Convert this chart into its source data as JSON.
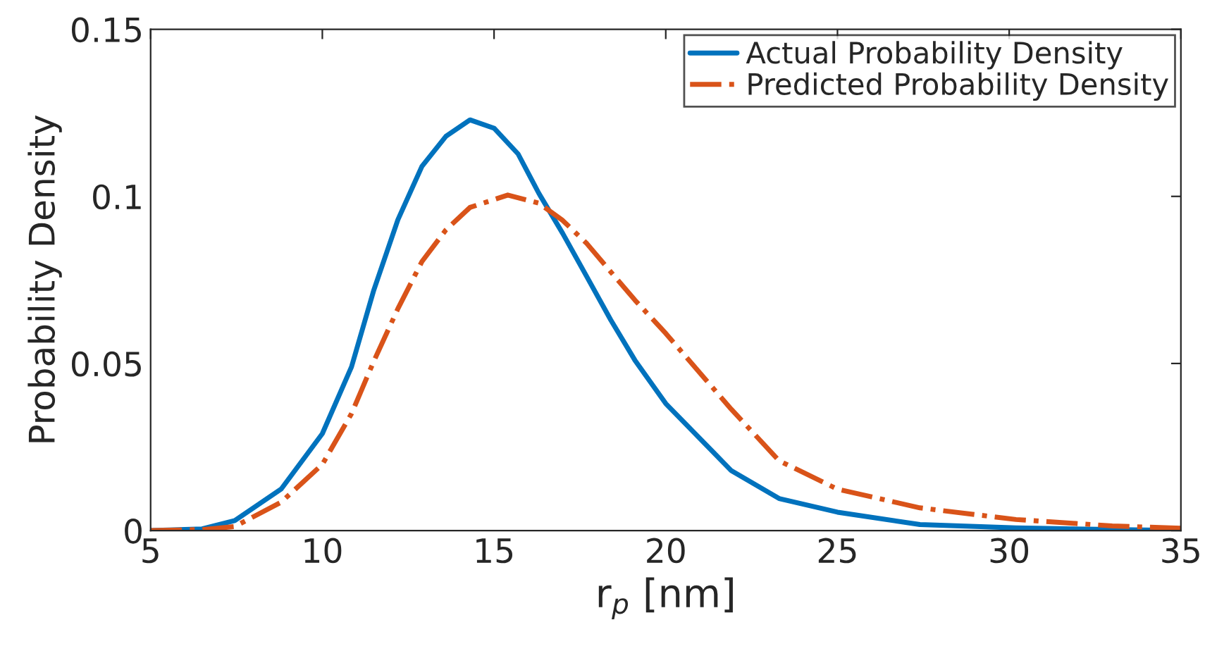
{
  "chart_data": {
    "type": "line",
    "xlabel": "r$_{p}$ [nm]",
    "ylabel": "Probability Density",
    "xlim": [
      5,
      35
    ],
    "ylim": [
      0,
      0.15
    ],
    "xticks": [
      5,
      10,
      15,
      20,
      25,
      30,
      35
    ],
    "yticks": [
      0,
      0.05,
      0.1,
      0.15
    ],
    "grid": false,
    "legend": "top right",
    "marker": "none",
    "series": [
      {
        "name": "Actual Probability Density",
        "color": "#0072bd",
        "line_style": "solid",
        "x": [
          5,
          6.5,
          7.45,
          8.8,
          10,
          10.85,
          11.5,
          12.2,
          12.9,
          13.6,
          14.3,
          15,
          15.7,
          16.3,
          17,
          17.7,
          18.4,
          19.1,
          20,
          21.9,
          23.3,
          25,
          27.4,
          30.2,
          35
        ],
        "values": [
          0,
          0.0005,
          0.003,
          0.0124,
          0.029,
          0.049,
          0.072,
          0.093,
          0.109,
          0.118,
          0.1229,
          0.1204,
          0.1127,
          0.101,
          0.0889,
          0.076,
          0.063,
          0.051,
          0.038,
          0.018,
          0.0096,
          0.0055,
          0.0018,
          0.0008,
          0
        ]
      },
      {
        "name": "Predicted Probability Density",
        "color": "#d95319",
        "line_style": "dashdot",
        "x": [
          5,
          6.5,
          7.45,
          8.8,
          10,
          10.85,
          11.5,
          12.2,
          12.9,
          13.6,
          14.3,
          15.4,
          16.3,
          17,
          17.7,
          18.4,
          19.1,
          20,
          21.9,
          23.3,
          25,
          27.4,
          30.2,
          33,
          35
        ],
        "values": [
          0,
          0.0003,
          0.0012,
          0.0085,
          0.0198,
          0.035,
          0.0507,
          0.0664,
          0.0805,
          0.09,
          0.0967,
          0.1004,
          0.098,
          0.0928,
          0.0859,
          0.0774,
          0.069,
          0.059,
          0.0364,
          0.0209,
          0.0124,
          0.0068,
          0.0033,
          0.0014,
          0.0007
        ]
      }
    ]
  }
}
